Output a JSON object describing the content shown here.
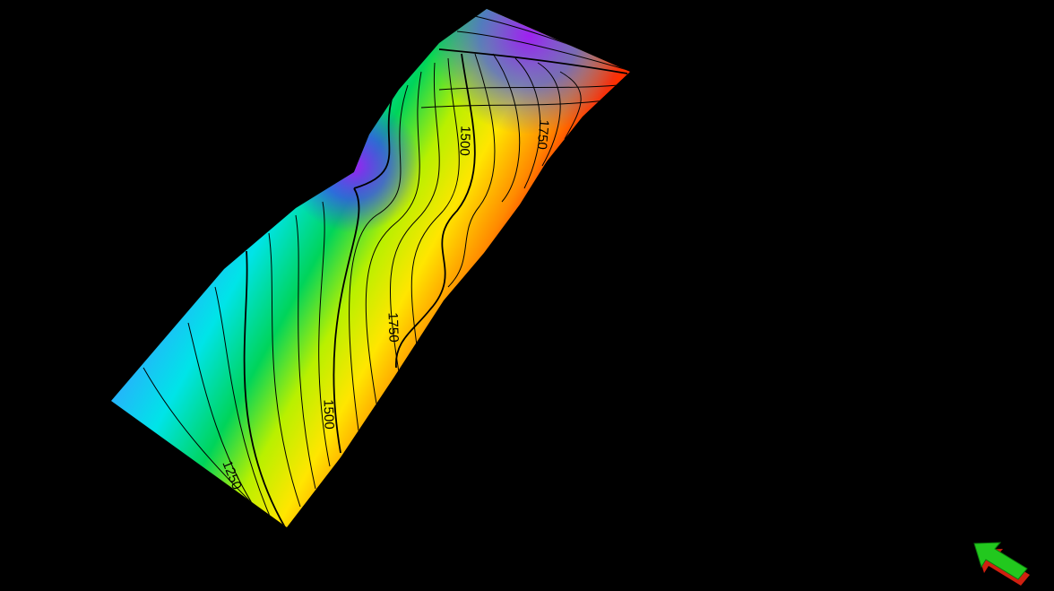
{
  "contour_labels": [
    "1250",
    "1500",
    "1750",
    "1500",
    "1750"
  ]
}
